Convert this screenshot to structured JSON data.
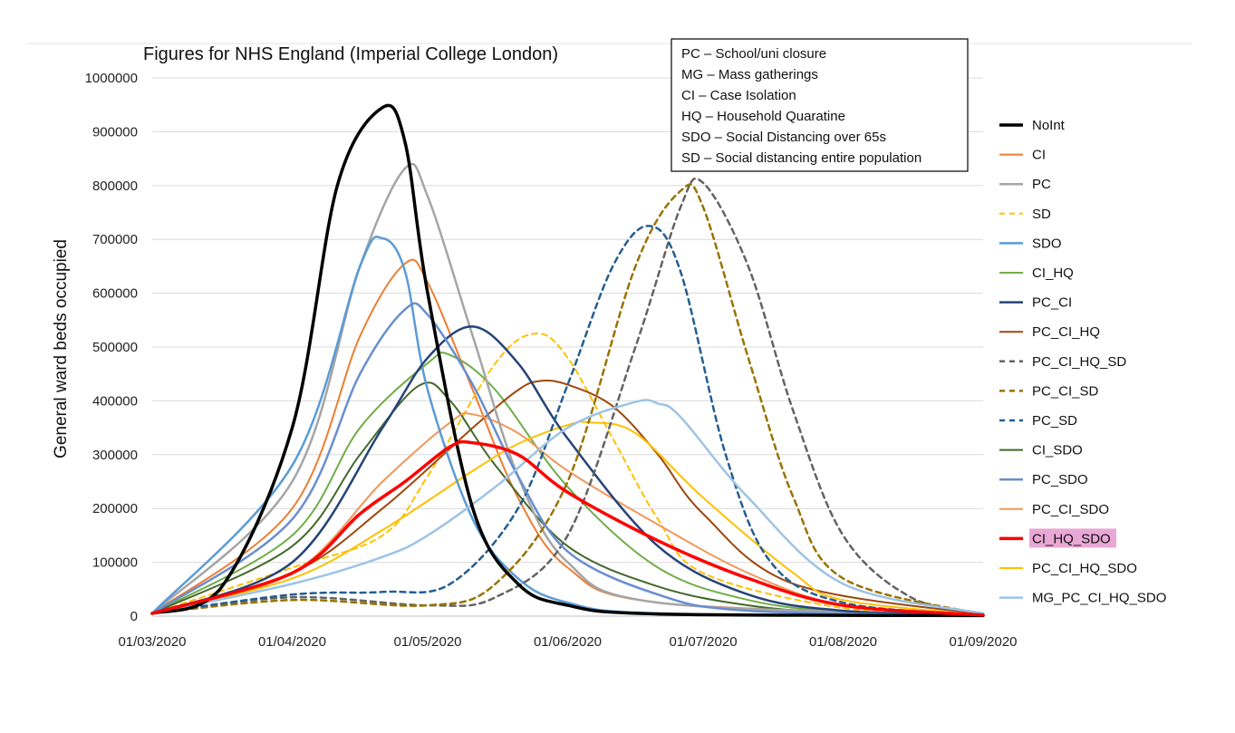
{
  "chart_data": {
    "type": "line",
    "title": "Figures for NHS England (Imperial College London)",
    "xlabel": "",
    "ylabel": "General ward beds occupied",
    "x_tick_labels": [
      "01/03/2020",
      "01/04/2020",
      "01/05/2020",
      "01/06/2020",
      "01/07/2020",
      "01/08/2020",
      "01/09/2020"
    ],
    "x_tick_days": [
      0,
      31,
      61,
      92,
      122,
      153,
      184
    ],
    "y_ticks": [
      0,
      100000,
      200000,
      300000,
      400000,
      500000,
      600000,
      700000,
      800000,
      900000,
      1000000
    ],
    "ylim": [
      0,
      1000000
    ],
    "grid": true,
    "legend_position": "right",
    "notes": [
      "PC – School/uni closure",
      "MG – Mass gatherings",
      "CI – Case Isolation",
      "HQ – Household Quaratine",
      "SDO – Social Distancing over 65s",
      "SD – Social distancing entire population"
    ],
    "highlight_series": "CI_HQ_SDO",
    "highlight_color": "#e9a7d6",
    "series": [
      {
        "name": "NoInt",
        "color": "#000000",
        "dashed": false,
        "width": 3.5,
        "x": [
          "01/03/2020",
          "16/03/2020",
          "01/04/2020",
          "11/04/2020",
          "21/04/2020",
          "26/04/2020",
          "01/05/2020",
          "11/05/2020",
          "21/05/2020",
          "01/06/2020",
          "21/06/2020",
          "01/09/2020"
        ],
        "y": [
          5000,
          50000,
          350000,
          800000,
          945000,
          880000,
          600000,
          200000,
          60000,
          20000,
          4000,
          1000
        ]
      },
      {
        "name": "CI",
        "color": "#ed7d31",
        "dashed": false,
        "width": 2,
        "x": [
          "01/03/2020",
          "01/04/2020",
          "16/04/2020",
          "26/04/2020",
          "01/05/2020",
          "11/05/2020",
          "21/05/2020",
          "01/06/2020",
          "21/06/2020",
          "01/09/2020"
        ],
        "y": [
          5000,
          200000,
          520000,
          655000,
          620000,
          420000,
          220000,
          90000,
          25000,
          2000
        ]
      },
      {
        "name": "PC",
        "color": "#a5a5a5",
        "dashed": false,
        "width": 2.5,
        "x": [
          "01/03/2020",
          "01/04/2020",
          "16/04/2020",
          "26/04/2020",
          "01/05/2020",
          "11/05/2020",
          "21/05/2020",
          "01/06/2020",
          "21/06/2020",
          "01/09/2020"
        ],
        "y": [
          5000,
          250000,
          650000,
          832000,
          780000,
          520000,
          260000,
          100000,
          25000,
          2000
        ]
      },
      {
        "name": "SD",
        "color": "#ffc000",
        "dashed": true,
        "width": 2,
        "x": [
          "01/03/2020",
          "01/04/2020",
          "21/04/2020",
          "01/05/2020",
          "16/05/2020",
          "25/05/2020",
          "01/06/2020",
          "11/06/2020",
          "21/06/2020",
          "01/07/2020",
          "01/08/2020",
          "01/09/2020"
        ],
        "y": [
          5000,
          90000,
          150000,
          260000,
          470000,
          525000,
          480000,
          330000,
          180000,
          80000,
          15000,
          2000
        ]
      },
      {
        "name": "SDO",
        "color": "#5b9bd5",
        "dashed": false,
        "width": 2.5,
        "x": [
          "01/03/2020",
          "01/04/2020",
          "16/04/2020",
          "21/04/2020",
          "26/04/2020",
          "01/05/2020",
          "11/05/2020",
          "21/05/2020",
          "01/06/2020",
          "21/06/2020",
          "01/09/2020"
        ],
        "y": [
          5000,
          280000,
          650000,
          702000,
          640000,
          420000,
          180000,
          70000,
          25000,
          5000,
          1000
        ]
      },
      {
        "name": "CI_HQ",
        "color": "#70ad47",
        "dashed": false,
        "width": 2,
        "x": [
          "01/03/2020",
          "01/04/2020",
          "16/04/2020",
          "01/05/2020",
          "06/05/2020",
          "16/05/2020",
          "01/06/2020",
          "21/06/2020",
          "11/07/2020",
          "01/08/2020",
          "01/09/2020"
        ],
        "y": [
          5000,
          150000,
          350000,
          470000,
          485000,
          420000,
          240000,
          90000,
          30000,
          8000,
          2000
        ]
      },
      {
        "name": "PC_CI",
        "color": "#264478",
        "dashed": false,
        "width": 2.5,
        "x": [
          "01/03/2020",
          "01/04/2020",
          "21/04/2020",
          "01/05/2020",
          "11/05/2020",
          "21/05/2020",
          "01/06/2020",
          "21/06/2020",
          "11/07/2020",
          "01/08/2020",
          "01/09/2020"
        ],
        "y": [
          5000,
          100000,
          350000,
          480000,
          538000,
          470000,
          330000,
          130000,
          40000,
          10000,
          2000
        ]
      },
      {
        "name": "PC_CI_HQ",
        "color": "#9e480e",
        "dashed": false,
        "width": 2,
        "x": [
          "01/03/2020",
          "01/04/2020",
          "21/04/2020",
          "11/05/2020",
          "21/05/2020",
          "26/05/2020",
          "01/06/2020",
          "11/06/2020",
          "21/06/2020",
          "01/07/2020",
          "21/07/2020",
          "01/09/2020"
        ],
        "y": [
          5000,
          80000,
          200000,
          350000,
          420000,
          437000,
          430000,
          390000,
          300000,
          190000,
          60000,
          3000
        ]
      },
      {
        "name": "PC_CI_HQ_SD",
        "color": "#636363",
        "dashed": true,
        "width": 2.5,
        "x": [
          "01/03/2020",
          "01/04/2020",
          "01/05/2020",
          "16/05/2020",
          "01/06/2020",
          "16/06/2020",
          "26/06/2020",
          "01/07/2020",
          "11/07/2020",
          "21/07/2020",
          "01/08/2020",
          "16/08/2020",
          "01/09/2020"
        ],
        "y": [
          5000,
          35000,
          20000,
          35000,
          150000,
          500000,
          760000,
          805000,
          650000,
          380000,
          150000,
          35000,
          5000
        ]
      },
      {
        "name": "PC_CI_SD",
        "color": "#997300",
        "dashed": true,
        "width": 2.5,
        "x": [
          "01/03/2020",
          "01/04/2020",
          "01/05/2020",
          "16/05/2020",
          "01/06/2020",
          "16/06/2020",
          "26/06/2020",
          "01/07/2020",
          "11/07/2020",
          "21/07/2020",
          "01/08/2020",
          "01/09/2020"
        ],
        "y": [
          5000,
          30000,
          20000,
          60000,
          250000,
          650000,
          790000,
          760000,
          480000,
          220000,
          70000,
          3000
        ]
      },
      {
        "name": "PC_SD",
        "color": "#255e91",
        "dashed": true,
        "width": 2.5,
        "x": [
          "01/03/2020",
          "01/04/2020",
          "21/04/2020",
          "06/05/2020",
          "21/05/2020",
          "01/06/2020",
          "11/06/2020",
          "19/06/2020",
          "26/06/2020",
          "06/07/2020",
          "16/07/2020",
          "01/08/2020",
          "01/09/2020"
        ],
        "y": [
          5000,
          40000,
          45000,
          60000,
          200000,
          430000,
          650000,
          725000,
          640000,
          300000,
          100000,
          25000,
          2000
        ]
      },
      {
        "name": "CI_SDO",
        "color": "#43682b",
        "dashed": false,
        "width": 2,
        "x": [
          "01/03/2020",
          "01/04/2020",
          "16/04/2020",
          "29/04/2020",
          "06/05/2020",
          "16/05/2020",
          "01/06/2020",
          "21/06/2020",
          "11/07/2020",
          "01/08/2020",
          "01/09/2020"
        ],
        "y": [
          5000,
          130000,
          300000,
          428000,
          400000,
          280000,
          130000,
          55000,
          20000,
          6000,
          1000
        ]
      },
      {
        "name": "PC_SDO",
        "color": "#698ed0",
        "dashed": false,
        "width": 2.5,
        "x": [
          "01/03/2020",
          "01/04/2020",
          "16/04/2020",
          "26/04/2020",
          "01/05/2020",
          "11/05/2020",
          "21/05/2020",
          "01/06/2020",
          "21/06/2020",
          "11/07/2020",
          "01/09/2020"
        ],
        "y": [
          5000,
          180000,
          450000,
          570000,
          560000,
          430000,
          260000,
          120000,
          40000,
          10000,
          1000
        ]
      },
      {
        "name": "PC_CI_SDO",
        "color": "#f1975a",
        "dashed": false,
        "width": 2,
        "x": [
          "01/03/2020",
          "01/04/2020",
          "21/04/2020",
          "06/05/2020",
          "11/05/2020",
          "21/05/2020",
          "01/06/2020",
          "21/06/2020",
          "11/07/2020",
          "01/08/2020",
          "01/09/2020"
        ],
        "y": [
          5000,
          80000,
          250000,
          360000,
          375000,
          340000,
          270000,
          170000,
          80000,
          20000,
          2000
        ]
      },
      {
        "name": "CI_HQ_SDO",
        "color": "#ff0000",
        "dashed": false,
        "width": 3.5,
        "x": [
          "01/03/2020",
          "01/04/2020",
          "16/04/2020",
          "26/04/2020",
          "06/05/2020",
          "11/05/2020",
          "21/05/2020",
          "01/06/2020",
          "21/06/2020",
          "11/07/2020",
          "01/08/2020",
          "01/09/2020"
        ],
        "y": [
          5000,
          80000,
          190000,
          250000,
          315000,
          322000,
          300000,
          230000,
          140000,
          70000,
          20000,
          2000
        ]
      },
      {
        "name": "PC_CI_HQ_SDO",
        "color": "#ffc000",
        "dashed": false,
        "width": 2,
        "x": [
          "01/03/2020",
          "01/04/2020",
          "21/04/2020",
          "11/05/2020",
          "21/05/2020",
          "01/06/2020",
          "06/06/2020",
          "16/06/2020",
          "01/07/2020",
          "21/07/2020",
          "01/08/2020",
          "01/09/2020"
        ],
        "y": [
          5000,
          70000,
          160000,
          270000,
          320000,
          355000,
          360000,
          340000,
          220000,
          80000,
          30000,
          2000
        ]
      },
      {
        "name": "MG_PC_CI_HQ_SDO",
        "color": "#9dc3e6",
        "dashed": false,
        "width": 2.5,
        "x": [
          "01/03/2020",
          "01/04/2020",
          "21/04/2020",
          "01/05/2020",
          "16/05/2020",
          "01/06/2020",
          "16/06/2020",
          "21/06/2020",
          "26/06/2020",
          "11/07/2020",
          "01/08/2020",
          "01/09/2020"
        ],
        "y": [
          5000,
          60000,
          110000,
          150000,
          240000,
          350000,
          398000,
          395000,
          370000,
          220000,
          60000,
          5000
        ]
      }
    ]
  }
}
